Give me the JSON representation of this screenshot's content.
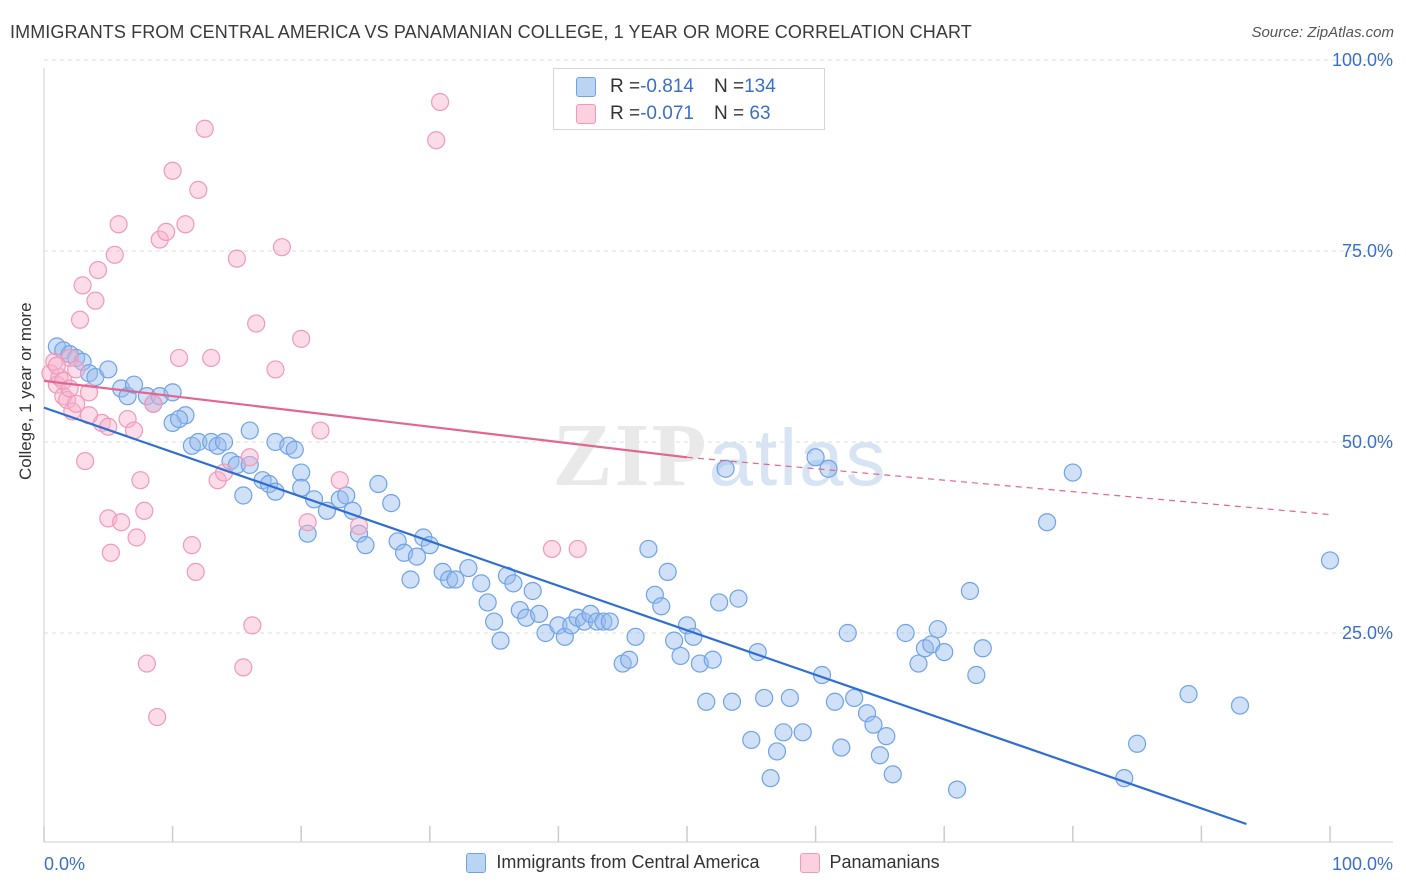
{
  "title": "IMMIGRANTS FROM CENTRAL AMERICA VS PANAMANIAN COLLEGE, 1 YEAR OR MORE CORRELATION CHART",
  "source": "Source: ZipAtlas.com",
  "watermark": "ZIPatlas",
  "legend_top": {
    "rows": [
      {
        "r_label": "R = ",
        "r_value": "-0.814",
        "n_label": "N = ",
        "n_value": "134",
        "color": "#6fa3e8"
      },
      {
        "r_label": "R = ",
        "r_value": "-0.071",
        "n_label": "N = ",
        "n_value": " 63",
        "color": "#f09ab8"
      }
    ]
  },
  "chart_data": {
    "type": "scatter",
    "xlabel": "",
    "ylabel": "College, 1 year or more",
    "xlim": [
      0,
      100
    ],
    "ylim": [
      0,
      100
    ],
    "x_tick_labels": [
      "0.0%",
      "100.0%"
    ],
    "y_tick_labels": [
      "25.0%",
      "50.0%",
      "75.0%",
      "100.0%"
    ],
    "y_ticks": [
      25,
      50,
      75,
      100
    ],
    "grid": true,
    "legend_position": "bottom",
    "series": [
      {
        "name": "Immigrants from Central America",
        "color": "#6fa3e8",
        "line_color": "#2f6fd4",
        "trend": {
          "x0": 0,
          "y0": 54.5,
          "x1": 93.5,
          "y1": 0
        },
        "points": [
          [
            1.0,
            62.5
          ],
          [
            1.5,
            62.0
          ],
          [
            2.0,
            61.5
          ],
          [
            2.5,
            61.0
          ],
          [
            3.0,
            60.5
          ],
          [
            3.5,
            59.0
          ],
          [
            4.0,
            58.5
          ],
          [
            5.0,
            59.5
          ],
          [
            6.0,
            57.0
          ],
          [
            6.5,
            56.0
          ],
          [
            7.0,
            57.5
          ],
          [
            8.0,
            56.0
          ],
          [
            8.5,
            55.0
          ],
          [
            9.0,
            56.0
          ],
          [
            10.0,
            56.5
          ],
          [
            10.0,
            52.5
          ],
          [
            11.0,
            53.5
          ],
          [
            10.5,
            53.0
          ],
          [
            11.5,
            49.5
          ],
          [
            12.0,
            50.0
          ],
          [
            13.0,
            50.0
          ],
          [
            13.5,
            49.5
          ],
          [
            14.0,
            50.0
          ],
          [
            14.5,
            47.5
          ],
          [
            15.0,
            47.0
          ],
          [
            15.5,
            43.0
          ],
          [
            16.0,
            51.5
          ],
          [
            16.0,
            47.0
          ],
          [
            17.0,
            45.0
          ],
          [
            17.5,
            44.5
          ],
          [
            18.0,
            50.0
          ],
          [
            18.0,
            43.5
          ],
          [
            19.0,
            49.5
          ],
          [
            19.5,
            49.0
          ],
          [
            20.0,
            46.0
          ],
          [
            20.0,
            44.0
          ],
          [
            21.0,
            42.5
          ],
          [
            22.0,
            41.0
          ],
          [
            20.5,
            38.0
          ],
          [
            23.0,
            42.5
          ],
          [
            23.5,
            43.0
          ],
          [
            24.0,
            41.0
          ],
          [
            24.5,
            38.0
          ],
          [
            25.0,
            36.5
          ],
          [
            26.0,
            44.5
          ],
          [
            27.0,
            42.0
          ],
          [
            27.5,
            37.0
          ],
          [
            28.0,
            35.5
          ],
          [
            28.5,
            32.0
          ],
          [
            29.0,
            35.0
          ],
          [
            29.5,
            37.5
          ],
          [
            30.0,
            36.5
          ],
          [
            31.0,
            33.0
          ],
          [
            31.5,
            32.0
          ],
          [
            32.0,
            32.0
          ],
          [
            33.0,
            33.5
          ],
          [
            34.0,
            31.5
          ],
          [
            34.5,
            29.0
          ],
          [
            35.0,
            26.5
          ],
          [
            35.5,
            24.0
          ],
          [
            36.0,
            32.5
          ],
          [
            36.5,
            31.5
          ],
          [
            37.0,
            28.0
          ],
          [
            37.5,
            27.0
          ],
          [
            38.0,
            30.5
          ],
          [
            38.5,
            27.5
          ],
          [
            39.0,
            25.0
          ],
          [
            40.0,
            26.0
          ],
          [
            40.5,
            24.5
          ],
          [
            41.0,
            26.0
          ],
          [
            41.5,
            27.0
          ],
          [
            42.0,
            26.5
          ],
          [
            42.5,
            27.5
          ],
          [
            43.0,
            26.5
          ],
          [
            43.5,
            26.5
          ],
          [
            44.0,
            26.5
          ],
          [
            45.0,
            21.0
          ],
          [
            45.5,
            21.5
          ],
          [
            46.0,
            24.5
          ],
          [
            47.0,
            36.0
          ],
          [
            47.5,
            30.0
          ],
          [
            48.0,
            28.5
          ],
          [
            48.5,
            33.0
          ],
          [
            49.0,
            24.0
          ],
          [
            49.5,
            22.0
          ],
          [
            50.0,
            26.0
          ],
          [
            50.5,
            24.5
          ],
          [
            51.0,
            21.0
          ],
          [
            51.5,
            16.0
          ],
          [
            52.0,
            21.5
          ],
          [
            52.5,
            29.0
          ],
          [
            53.0,
            46.5
          ],
          [
            53.5,
            16.0
          ],
          [
            54.0,
            29.5
          ],
          [
            55.0,
            11.0
          ],
          [
            55.5,
            22.5
          ],
          [
            56.0,
            16.5
          ],
          [
            56.5,
            6.0
          ],
          [
            57.0,
            9.5
          ],
          [
            57.5,
            12.0
          ],
          [
            58.0,
            16.5
          ],
          [
            59.0,
            12.0
          ],
          [
            60.0,
            48.0
          ],
          [
            60.5,
            19.5
          ],
          [
            61.0,
            46.5
          ],
          [
            61.5,
            16.0
          ],
          [
            62.0,
            10.0
          ],
          [
            62.5,
            25.0
          ],
          [
            63.0,
            16.5
          ],
          [
            64.0,
            14.5
          ],
          [
            64.5,
            13.0
          ],
          [
            65.0,
            9.0
          ],
          [
            65.5,
            11.5
          ],
          [
            66.0,
            6.5
          ],
          [
            67.0,
            25.0
          ],
          [
            68.0,
            21.0
          ],
          [
            68.5,
            23.0
          ],
          [
            69.0,
            23.5
          ],
          [
            69.5,
            25.5
          ],
          [
            70.0,
            22.5
          ],
          [
            71.0,
            4.5
          ],
          [
            72.0,
            30.5
          ],
          [
            72.5,
            19.5
          ],
          [
            73.0,
            23.0
          ],
          [
            78.0,
            39.5
          ],
          [
            80.0,
            46.0
          ],
          [
            84.0,
            6.0
          ],
          [
            85.0,
            10.5
          ],
          [
            89.0,
            17.0
          ],
          [
            93.0,
            15.5
          ],
          [
            100.0,
            34.5
          ]
        ]
      },
      {
        "name": "Panamanians",
        "color": "#f09ab8",
        "line_color": "#e0678f",
        "trend": {
          "x0": 0,
          "y0": 58.0,
          "x1": 50,
          "y1": 48.0
        },
        "trend_dashed": {
          "x0": 50,
          "y0": 48.0,
          "x1": 100,
          "y1": 40.5
        },
        "points": [
          [
            0.5,
            59.0
          ],
          [
            0.8,
            60.5
          ],
          [
            1.0,
            57.5
          ],
          [
            1.2,
            58.5
          ],
          [
            1.5,
            56.0
          ],
          [
            1.8,
            55.5
          ],
          [
            2.0,
            61.0
          ],
          [
            2.2,
            54.0
          ],
          [
            2.5,
            59.5
          ],
          [
            2.8,
            66.0
          ],
          [
            3.0,
            70.5
          ],
          [
            3.2,
            47.5
          ],
          [
            3.5,
            56.5
          ],
          [
            4.0,
            68.5
          ],
          [
            4.2,
            72.5
          ],
          [
            4.5,
            52.5
          ],
          [
            5.0,
            40.0
          ],
          [
            5.2,
            35.5
          ],
          [
            5.5,
            74.5
          ],
          [
            5.8,
            78.5
          ],
          [
            6.0,
            39.5
          ],
          [
            6.5,
            53.0
          ],
          [
            7.0,
            51.5
          ],
          [
            7.2,
            37.5
          ],
          [
            7.5,
            45.0
          ],
          [
            7.8,
            41.0
          ],
          [
            8.0,
            21.0
          ],
          [
            8.5,
            55.0
          ],
          [
            8.8,
            14.0
          ],
          [
            9.0,
            76.5
          ],
          [
            9.5,
            77.5
          ],
          [
            10.0,
            85.5
          ],
          [
            10.5,
            61.0
          ],
          [
            11.0,
            78.5
          ],
          [
            11.5,
            36.5
          ],
          [
            11.8,
            33.0
          ],
          [
            12.0,
            83.0
          ],
          [
            12.5,
            91.0
          ],
          [
            13.0,
            61.0
          ],
          [
            13.5,
            45.0
          ],
          [
            14.0,
            46.0
          ],
          [
            15.0,
            74.0
          ],
          [
            15.5,
            20.5
          ],
          [
            16.0,
            48.0
          ],
          [
            16.2,
            26.0
          ],
          [
            16.5,
            65.5
          ],
          [
            18.0,
            59.5
          ],
          [
            18.5,
            75.5
          ],
          [
            20.0,
            63.5
          ],
          [
            20.5,
            39.5
          ],
          [
            21.5,
            51.5
          ],
          [
            23.0,
            45.0
          ],
          [
            24.5,
            39.0
          ],
          [
            30.5,
            89.5
          ],
          [
            30.8,
            94.5
          ],
          [
            39.5,
            36.0
          ],
          [
            41.5,
            36.0
          ],
          [
            1.0,
            60.0
          ],
          [
            1.5,
            58.0
          ],
          [
            2.0,
            57.0
          ],
          [
            2.5,
            55.0
          ],
          [
            3.5,
            53.5
          ],
          [
            5.0,
            52.0
          ]
        ]
      }
    ]
  }
}
